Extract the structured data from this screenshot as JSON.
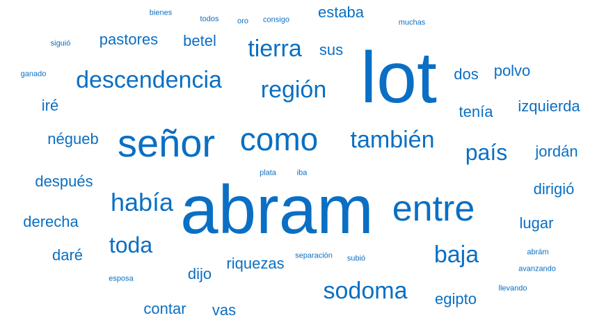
{
  "color": "#0a6fc4",
  "words": [
    "abram",
    "lot",
    "señor",
    "entre",
    "como",
    "había",
    "región",
    "tierra",
    "toda",
    "descendencia",
    "también",
    "sodoma",
    "país",
    "baja",
    "riquezas",
    "estaba",
    "pastores",
    "betel",
    "sus",
    "dos",
    "polvo",
    "izquierda",
    "tenía",
    "jordán",
    "dirigió",
    "lugar",
    "después",
    "derecha",
    "daré",
    "négueb",
    "iré",
    "contar",
    "vas",
    "dijo",
    "egipto",
    "bienes",
    "todos",
    "oro",
    "consigo",
    "muchas",
    "siguió",
    "ganado",
    "plata",
    "iba",
    "separación",
    "subió",
    "abrám",
    "avanzando",
    "esposa",
    "llevando"
  ]
}
